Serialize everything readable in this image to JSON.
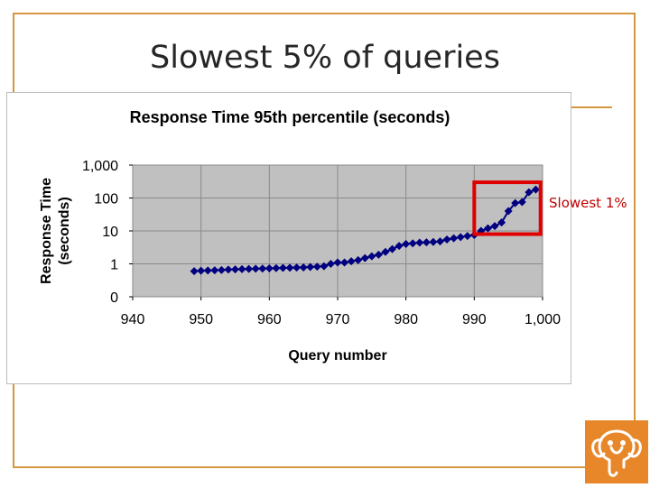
{
  "slide": {
    "title": "Slowest 5% of queries",
    "callout": "Slowest 1%",
    "logo_icon": "elephant-logo-icon",
    "accent_color": "#d4973e",
    "logo_color": "#e8872a",
    "callout_color": "#e00000"
  },
  "chart_data": {
    "type": "line",
    "title": "Response Time 95th percentile (seconds)",
    "xlabel": "Query number",
    "ylabel": "Response Time (seconds)",
    "yscale": "log",
    "xlim": [
      940,
      1000
    ],
    "ylim": [
      0.1,
      1000
    ],
    "x_ticks": [
      {
        "value": 940,
        "label": "940"
      },
      {
        "value": 950,
        "label": "950"
      },
      {
        "value": 960,
        "label": "960"
      },
      {
        "value": 970,
        "label": "970"
      },
      {
        "value": 980,
        "label": "980"
      },
      {
        "value": 990,
        "label": "990"
      },
      {
        "value": 1000,
        "label": "1,000"
      }
    ],
    "y_ticks": [
      {
        "value": 0.1,
        "label": "0"
      },
      {
        "value": 1,
        "label": "1"
      },
      {
        "value": 10,
        "label": "10"
      },
      {
        "value": 100,
        "label": "100"
      },
      {
        "value": 1000,
        "label": "1,000"
      }
    ],
    "grid": true,
    "plot_background": "#c0c0c0",
    "series_color": "#000080",
    "series": [
      {
        "x": [
          949,
          950,
          951,
          952,
          953,
          954,
          955,
          956,
          957,
          958,
          959,
          960,
          961,
          962,
          963,
          964,
          965,
          966,
          967,
          968,
          969,
          970,
          971,
          972,
          973,
          974,
          975,
          976,
          977,
          978,
          979,
          980,
          981,
          982,
          983,
          984,
          985,
          986,
          987,
          988,
          989,
          990,
          991,
          992,
          993,
          994,
          995,
          996,
          997,
          998,
          999
        ],
        "values": [
          0.6,
          0.62,
          0.63,
          0.64,
          0.65,
          0.67,
          0.68,
          0.69,
          0.7,
          0.71,
          0.72,
          0.73,
          0.74,
          0.75,
          0.76,
          0.77,
          0.78,
          0.8,
          0.82,
          0.85,
          1.0,
          1.1,
          1.1,
          1.2,
          1.3,
          1.5,
          1.7,
          1.9,
          2.3,
          2.8,
          3.5,
          4.0,
          4.2,
          4.4,
          4.5,
          4.6,
          4.8,
          5.5,
          6.0,
          6.5,
          7.0,
          7.5,
          10,
          12,
          14,
          18,
          40,
          70,
          75,
          150,
          180
        ]
      }
    ],
    "highlight": {
      "x_range": [
        990,
        999.7
      ],
      "y_range": [
        8,
        300
      ]
    }
  }
}
